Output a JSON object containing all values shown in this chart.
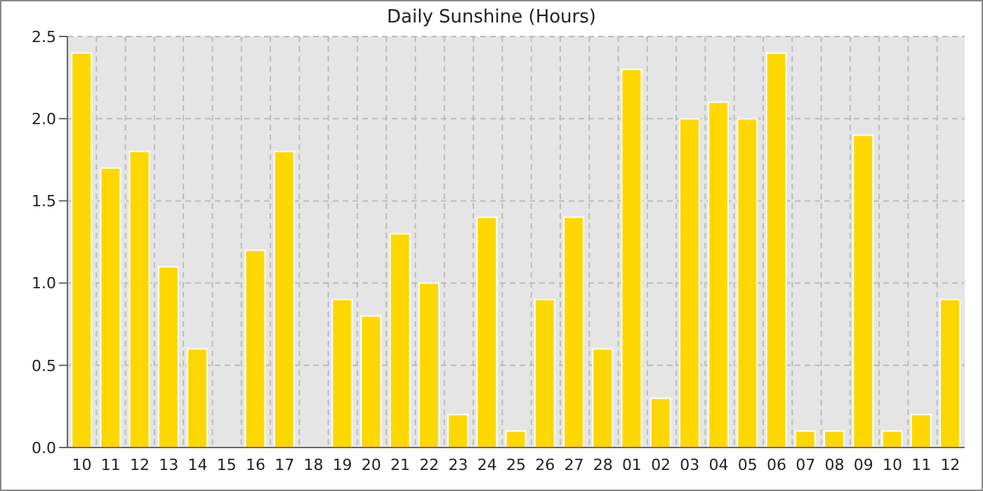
{
  "chart_data": {
    "type": "bar",
    "title": "Daily Sunshine (Hours)",
    "categories": [
      "10",
      "11",
      "12",
      "13",
      "14",
      "15",
      "16",
      "17",
      "18",
      "19",
      "20",
      "21",
      "22",
      "23",
      "24",
      "25",
      "26",
      "27",
      "28",
      "01",
      "02",
      "03",
      "04",
      "05",
      "06",
      "07",
      "08",
      "09",
      "10",
      "11",
      "12"
    ],
    "values": [
      2.4,
      1.7,
      1.8,
      1.1,
      0.6,
      0,
      1.2,
      1.8,
      0,
      0.9,
      0.8,
      1.3,
      1.0,
      0.2,
      1.4,
      0.1,
      0.9,
      1.4,
      0.6,
      2.3,
      0.3,
      2.0,
      2.1,
      2.0,
      2.4,
      0.1,
      0.1,
      1.9,
      0.1,
      0.2,
      0.9
    ],
    "color": "#ffd700",
    "ylim": [
      0,
      2.5
    ],
    "yticks": [
      {
        "value": 0,
        "label": "0.0"
      },
      {
        "value": 0.5,
        "label": "0.5"
      },
      {
        "value": 1,
        "label": "1.0"
      },
      {
        "value": 1.5,
        "label": "1.5"
      },
      {
        "value": 2,
        "label": "2.0"
      },
      {
        "value": 2.5,
        "label": "2.5"
      }
    ],
    "grid": true
  }
}
